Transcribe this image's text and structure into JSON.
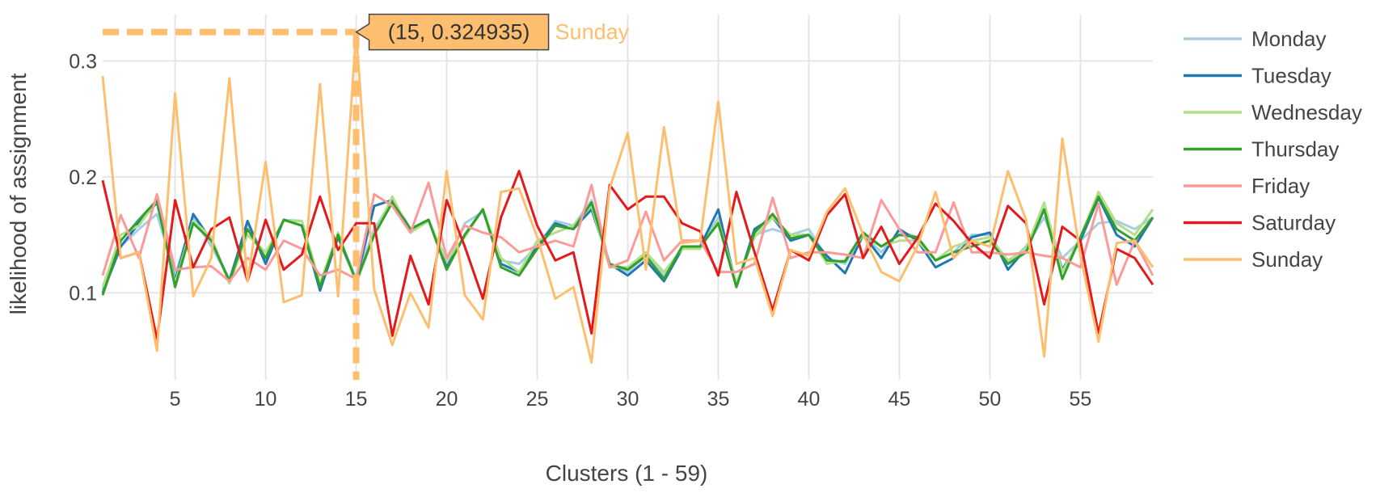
{
  "chart_data": {
    "type": "line",
    "title": "",
    "xlabel": "Clusters (1 - 59)",
    "ylabel": "likelihood of assignment",
    "xlim": [
      1,
      59
    ],
    "ylim": [
      0.025,
      0.34
    ],
    "xticks": [
      5,
      10,
      15,
      20,
      25,
      30,
      35,
      40,
      45,
      50,
      55
    ],
    "yticks": [
      0.1,
      0.2,
      0.3
    ],
    "ytick_labels": [
      "0.1",
      "0.2",
      "0.3"
    ],
    "grid": true,
    "legend_position": "right",
    "hover": {
      "series": "Sunday",
      "x": 15,
      "y": 0.324935,
      "label": "(15, 0.324935)",
      "color": "#fdbf6f"
    },
    "series": [
      {
        "name": "Monday",
        "color": "#a6cee3",
        "values": [
          0.103,
          0.14,
          0.155,
          0.168,
          0.115,
          0.165,
          0.14,
          0.112,
          0.16,
          0.128,
          0.163,
          0.162,
          0.105,
          0.15,
          0.112,
          0.155,
          0.18,
          0.155,
          0.163,
          0.125,
          0.16,
          0.17,
          0.128,
          0.125,
          0.14,
          0.162,
          0.158,
          0.18,
          0.125,
          0.118,
          0.132,
          0.115,
          0.138,
          0.14,
          0.165,
          0.108,
          0.15,
          0.155,
          0.15,
          0.155,
          0.13,
          0.125,
          0.15,
          0.135,
          0.153,
          0.148,
          0.128,
          0.135,
          0.15,
          0.15,
          0.125,
          0.14,
          0.165,
          0.13,
          0.145,
          0.16,
          0.162,
          0.155,
          0.165
        ]
      },
      {
        "name": "Tuesday",
        "color": "#1f78b4",
        "values": [
          0.1,
          0.14,
          0.16,
          0.178,
          0.11,
          0.168,
          0.145,
          0.11,
          0.162,
          0.125,
          0.163,
          0.158,
          0.102,
          0.148,
          0.11,
          0.175,
          0.18,
          0.155,
          0.163,
          0.122,
          0.15,
          0.172,
          0.125,
          0.118,
          0.14,
          0.16,
          0.155,
          0.172,
          0.125,
          0.115,
          0.128,
          0.11,
          0.138,
          0.14,
          0.172,
          0.105,
          0.155,
          0.165,
          0.145,
          0.15,
          0.132,
          0.117,
          0.15,
          0.13,
          0.155,
          0.145,
          0.122,
          0.13,
          0.148,
          0.152,
          0.12,
          0.138,
          0.172,
          0.12,
          0.145,
          0.182,
          0.15,
          0.14,
          0.165
        ]
      },
      {
        "name": "Wednesday",
        "color": "#b2df8a",
        "values": [
          0.105,
          0.15,
          0.158,
          0.18,
          0.108,
          0.162,
          0.148,
          0.108,
          0.15,
          0.135,
          0.162,
          0.162,
          0.108,
          0.152,
          0.108,
          0.15,
          0.183,
          0.152,
          0.162,
          0.128,
          0.148,
          0.172,
          0.13,
          0.118,
          0.145,
          0.152,
          0.158,
          0.175,
          0.122,
          0.122,
          0.135,
          0.118,
          0.138,
          0.138,
          0.162,
          0.108,
          0.148,
          0.165,
          0.15,
          0.15,
          0.125,
          0.128,
          0.15,
          0.14,
          0.145,
          0.145,
          0.128,
          0.14,
          0.145,
          0.148,
          0.128,
          0.138,
          0.178,
          0.118,
          0.148,
          0.187,
          0.16,
          0.15,
          0.172
        ]
      },
      {
        "name": "Thursday",
        "color": "#33a02c",
        "values": [
          0.098,
          0.145,
          0.163,
          0.18,
          0.105,
          0.16,
          0.145,
          0.11,
          0.155,
          0.13,
          0.163,
          0.158,
          0.105,
          0.15,
          0.11,
          0.15,
          0.178,
          0.155,
          0.163,
          0.12,
          0.15,
          0.172,
          0.122,
          0.115,
          0.138,
          0.158,
          0.155,
          0.178,
          0.125,
          0.12,
          0.132,
          0.112,
          0.14,
          0.14,
          0.16,
          0.105,
          0.152,
          0.168,
          0.147,
          0.15,
          0.128,
          0.127,
          0.152,
          0.14,
          0.15,
          0.148,
          0.128,
          0.135,
          0.14,
          0.145,
          0.125,
          0.135,
          0.172,
          0.112,
          0.148,
          0.183,
          0.155,
          0.145,
          0.165
        ]
      },
      {
        "name": "Friday",
        "color": "#fb9a99",
        "values": [
          0.115,
          0.167,
          0.13,
          0.185,
          0.12,
          0.122,
          0.123,
          0.11,
          0.13,
          0.12,
          0.145,
          0.138,
          0.115,
          0.12,
          0.112,
          0.185,
          0.175,
          0.152,
          0.195,
          0.13,
          0.158,
          0.152,
          0.148,
          0.135,
          0.14,
          0.145,
          0.14,
          0.193,
          0.122,
          0.128,
          0.17,
          0.128,
          0.145,
          0.145,
          0.118,
          0.118,
          0.125,
          0.182,
          0.13,
          0.135,
          0.135,
          0.133,
          0.13,
          0.18,
          0.155,
          0.135,
          0.135,
          0.178,
          0.135,
          0.135,
          0.133,
          0.135,
          0.132,
          0.13,
          0.122,
          0.177,
          0.107,
          0.145,
          0.115
        ]
      },
      {
        "name": "Saturday",
        "color": "#e31a1c",
        "values": [
          0.197,
          0.13,
          0.135,
          0.06,
          0.18,
          0.122,
          0.155,
          0.165,
          0.11,
          0.163,
          0.12,
          0.133,
          0.183,
          0.137,
          0.16,
          0.16,
          0.063,
          0.132,
          0.09,
          0.18,
          0.14,
          0.095,
          0.165,
          0.205,
          0.158,
          0.128,
          0.135,
          0.065,
          0.193,
          0.172,
          0.183,
          0.183,
          0.16,
          0.153,
          0.115,
          0.187,
          0.135,
          0.085,
          0.137,
          0.128,
          0.167,
          0.185,
          0.13,
          0.157,
          0.125,
          0.147,
          0.177,
          0.162,
          0.143,
          0.13,
          0.175,
          0.16,
          0.09,
          0.157,
          0.145,
          0.065,
          0.138,
          0.13,
          0.107
        ]
      },
      {
        "name": "Sunday",
        "color": "#fdbf6f",
        "values": [
          0.287,
          0.13,
          0.135,
          0.05,
          0.272,
          0.097,
          0.13,
          0.285,
          0.11,
          0.213,
          0.092,
          0.098,
          0.28,
          0.097,
          0.324935,
          0.103,
          0.055,
          0.1,
          0.07,
          0.205,
          0.098,
          0.077,
          0.187,
          0.19,
          0.148,
          0.095,
          0.105,
          0.04,
          0.19,
          0.238,
          0.12,
          0.243,
          0.143,
          0.145,
          0.265,
          0.125,
          0.13,
          0.08,
          0.137,
          0.132,
          0.17,
          0.19,
          0.15,
          0.118,
          0.11,
          0.14,
          0.187,
          0.13,
          0.145,
          0.14,
          0.205,
          0.163,
          0.045,
          0.233,
          0.132,
          0.058,
          0.143,
          0.145,
          0.122
        ]
      }
    ]
  }
}
